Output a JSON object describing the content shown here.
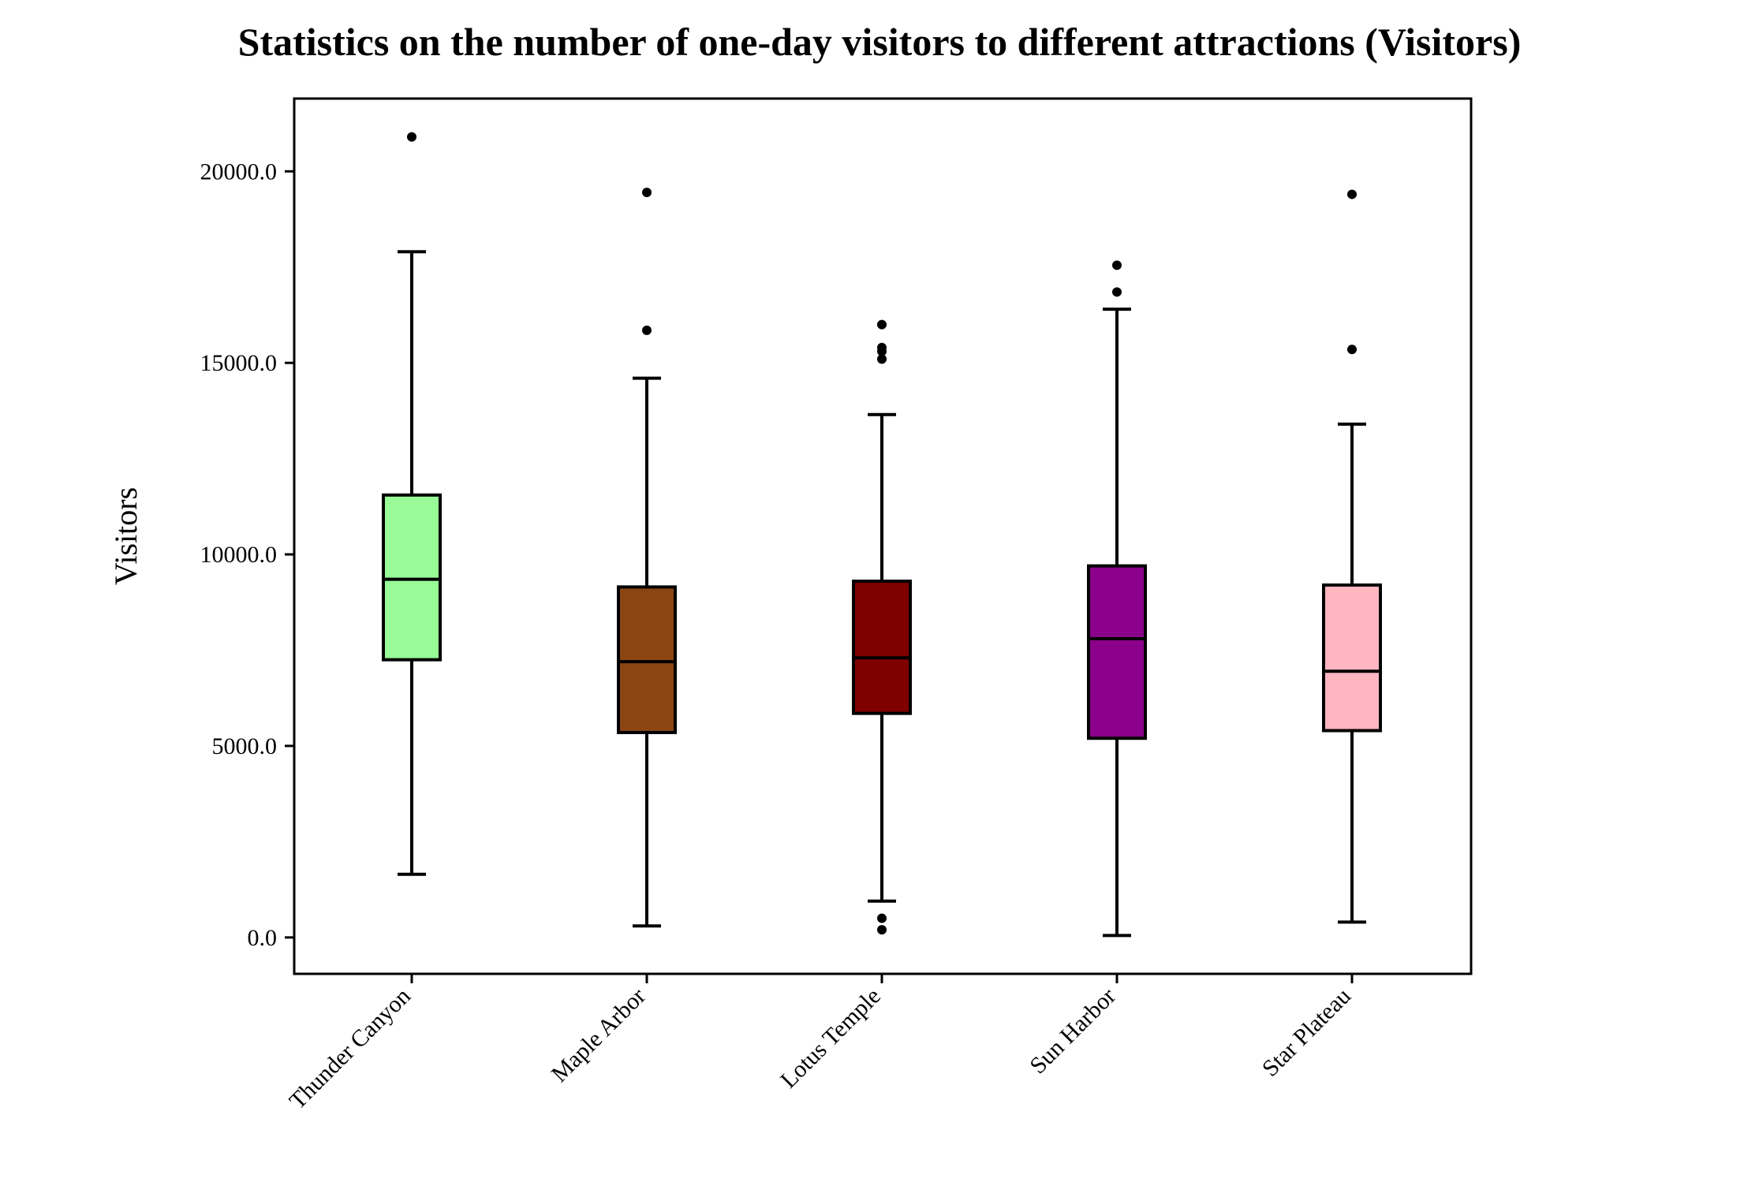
{
  "chart_data": {
    "type": "box",
    "title": "Statistics on the number of one-day visitors to different attractions (Visitors)",
    "xlabel": "",
    "ylabel": "Visitors",
    "ylim": [
      -950,
      21900
    ],
    "yticks": [
      0,
      5000,
      10000,
      15000,
      20000
    ],
    "ytick_labels": [
      "0.0",
      "5000.0",
      "10000.0",
      "15000.0",
      "20000.0"
    ],
    "grid": false,
    "categories": [
      "Thunder Canyon",
      "Maple Arbor",
      "Lotus Temple",
      "Sun Harbor",
      "Star Plateau"
    ],
    "boxes": [
      {
        "category": "Thunder Canyon",
        "color": "#98FB98",
        "whisker_low": 1650,
        "q1": 7250,
        "median": 9350,
        "q3": 11550,
        "whisker_high": 17900,
        "outliers": [
          20900
        ]
      },
      {
        "category": "Maple Arbor",
        "color": "#8B4513",
        "whisker_low": 300,
        "q1": 5350,
        "median": 7200,
        "q3": 9150,
        "whisker_high": 14600,
        "outliers": [
          15850,
          19450
        ]
      },
      {
        "category": "Lotus Temple",
        "color": "#800000",
        "whisker_low": 950,
        "q1": 5850,
        "median": 7300,
        "q3": 9300,
        "whisker_high": 13650,
        "outliers": [
          200,
          500,
          15100,
          15300,
          15400,
          16000
        ]
      },
      {
        "category": "Sun Harbor",
        "color": "#8B008B",
        "whisker_low": 50,
        "q1": 5200,
        "median": 7800,
        "q3": 9700,
        "whisker_high": 16400,
        "outliers": [
          16850,
          17550
        ]
      },
      {
        "category": "Star Plateau",
        "color": "#FFB6C1",
        "whisker_low": 400,
        "q1": 5400,
        "median": 6950,
        "q3": 9200,
        "whisker_high": 13400,
        "outliers": [
          15350,
          19400
        ]
      }
    ]
  }
}
